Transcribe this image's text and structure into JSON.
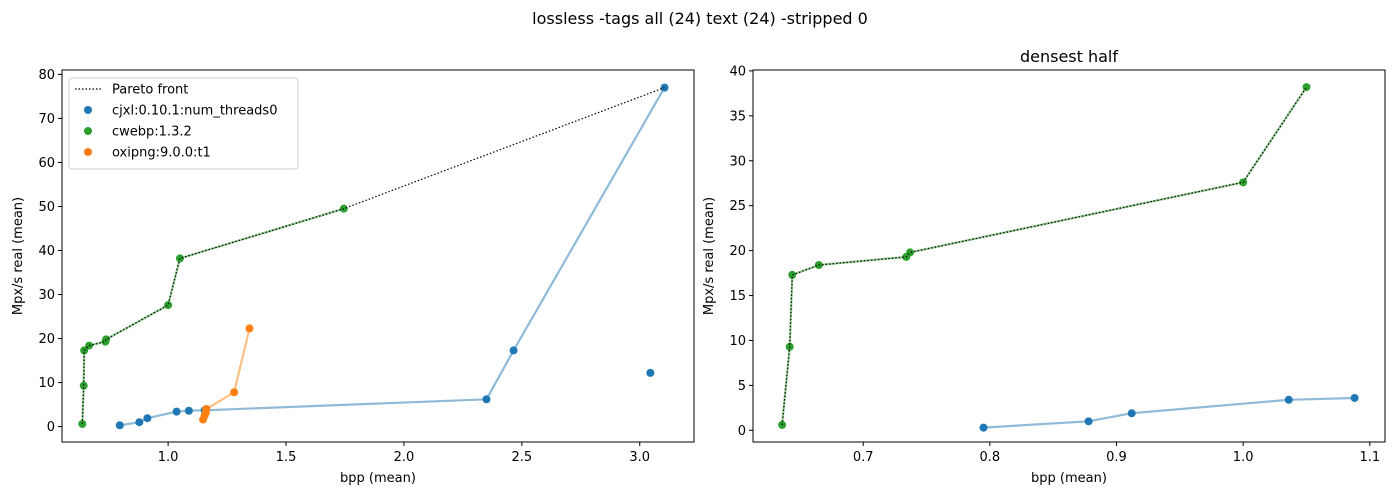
{
  "suptitle": "lossless -tags all (24) text (24) -stripped 0",
  "colors": {
    "cjxl": "#1f77b4",
    "cwebp": "#2ca02c",
    "oxipng": "#ff7f0e",
    "pareto": "#000000"
  },
  "chart_data": [
    {
      "type": "scatter",
      "title": "",
      "xlabel": "bpp (mean)",
      "ylabel": "Mpx/s real (mean)",
      "xlim": [
        0.55,
        3.23
      ],
      "ylim": [
        -3.5,
        81
      ],
      "xticks": [
        1.0,
        1.5,
        2.0,
        2.5,
        3.0
      ],
      "xtick_labels": [
        "1.0",
        "1.5",
        "2.0",
        "2.5",
        "3.0"
      ],
      "yticks": [
        0,
        10,
        20,
        30,
        40,
        50,
        60,
        70,
        80
      ],
      "ytick_labels": [
        "0",
        "10",
        "20",
        "30",
        "40",
        "50",
        "60",
        "70",
        "80"
      ],
      "grid": false,
      "legend": {
        "placement": "upper-left",
        "entries": [
          {
            "label": "Pareto front",
            "kind": "line",
            "series": "pareto"
          },
          {
            "label": "cjxl:0.10.1:num_threads0",
            "kind": "marker",
            "series": "cjxl"
          },
          {
            "label": "cwebp:1.3.2",
            "kind": "marker",
            "series": "cwebp"
          },
          {
            "label": "oxipng:9.0.0:t1",
            "kind": "marker",
            "series": "oxipng"
          }
        ]
      },
      "series": [
        {
          "key": "cjxl",
          "points": [
            [
              0.795,
              0.3
            ],
            [
              0.878,
              1.0
            ],
            [
              0.912,
              1.9
            ],
            [
              1.036,
              3.4
            ],
            [
              1.088,
              3.6
            ],
            [
              1.155,
              3.7
            ],
            [
              2.35,
              6.2
            ],
            [
              2.465,
              17.3
            ],
            [
              3.045,
              12.2
            ],
            [
              3.105,
              77.0
            ]
          ],
          "line": [
            [
              0.795,
              0.3
            ],
            [
              0.878,
              1.0
            ],
            [
              0.912,
              1.9
            ],
            [
              1.036,
              3.4
            ],
            [
              1.088,
              3.6
            ],
            [
              1.155,
              3.7
            ],
            [
              2.35,
              6.2
            ],
            [
              2.465,
              17.3
            ],
            [
              3.105,
              77.0
            ]
          ]
        },
        {
          "key": "cwebp",
          "points": [
            [
              0.636,
              0.6
            ],
            [
              0.642,
              9.3
            ],
            [
              0.644,
              17.3
            ],
            [
              0.665,
              18.4
            ],
            [
              0.734,
              19.3
            ],
            [
              0.737,
              19.8
            ],
            [
              1.0,
              27.6
            ],
            [
              1.05,
              38.2
            ],
            [
              1.745,
              49.5
            ]
          ],
          "line": [
            [
              0.636,
              0.6
            ],
            [
              0.642,
              9.3
            ],
            [
              0.644,
              17.3
            ],
            [
              0.665,
              18.4
            ],
            [
              0.734,
              19.3
            ],
            [
              0.737,
              19.8
            ],
            [
              1.0,
              27.6
            ],
            [
              1.05,
              38.2
            ],
            [
              1.745,
              49.5
            ]
          ]
        },
        {
          "key": "oxipng",
          "points": [
            [
              1.148,
              1.6
            ],
            [
              1.155,
              2.5
            ],
            [
              1.16,
              3.2
            ],
            [
              1.162,
              4.0
            ],
            [
              1.28,
              7.8
            ],
            [
              1.345,
              22.3
            ]
          ],
          "line": [
            [
              1.148,
              1.6
            ],
            [
              1.155,
              2.5
            ],
            [
              1.16,
              3.2
            ],
            [
              1.162,
              4.0
            ],
            [
              1.28,
              7.8
            ],
            [
              1.345,
              22.3
            ]
          ]
        },
        {
          "key": "pareto",
          "points": [],
          "line": [
            [
              0.636,
              0.6
            ],
            [
              0.642,
              9.3
            ],
            [
              0.644,
              17.3
            ],
            [
              0.665,
              18.4
            ],
            [
              0.734,
              19.3
            ],
            [
              0.737,
              19.8
            ],
            [
              1.0,
              27.6
            ],
            [
              1.05,
              38.2
            ],
            [
              1.745,
              49.5
            ],
            [
              3.105,
              77.0
            ]
          ]
        }
      ]
    },
    {
      "type": "scatter",
      "title": "densest half",
      "xlabel": "bpp (mean)",
      "ylabel": "Mpx/s real (mean)",
      "xlim": [
        0.613,
        1.112
      ],
      "ylim": [
        -1.3,
        40.1
      ],
      "xticks": [
        0.7,
        0.8,
        0.9,
        1.0,
        1.1
      ],
      "xtick_labels": [
        "0.7",
        "0.8",
        "0.9",
        "1.0",
        "1.1"
      ],
      "yticks": [
        0,
        5,
        10,
        15,
        20,
        25,
        30,
        35,
        40
      ],
      "ytick_labels": [
        "0",
        "5",
        "10",
        "15",
        "20",
        "25",
        "30",
        "35",
        "40"
      ],
      "grid": false,
      "series": [
        {
          "key": "cjxl",
          "points": [
            [
              0.795,
              0.3
            ],
            [
              0.878,
              1.0
            ],
            [
              0.912,
              1.9
            ],
            [
              1.036,
              3.4
            ],
            [
              1.088,
              3.6
            ]
          ],
          "line": [
            [
              0.795,
              0.3
            ],
            [
              0.878,
              1.0
            ],
            [
              0.912,
              1.9
            ],
            [
              1.036,
              3.4
            ],
            [
              1.088,
              3.6
            ]
          ]
        },
        {
          "key": "cwebp",
          "points": [
            [
              0.636,
              0.6
            ],
            [
              0.642,
              9.3
            ],
            [
              0.644,
              17.3
            ],
            [
              0.665,
              18.4
            ],
            [
              0.734,
              19.3
            ],
            [
              0.737,
              19.8
            ],
            [
              1.0,
              27.6
            ],
            [
              1.05,
              38.2
            ]
          ],
          "line": [
            [
              0.636,
              0.6
            ],
            [
              0.642,
              9.3
            ],
            [
              0.644,
              17.3
            ],
            [
              0.665,
              18.4
            ],
            [
              0.734,
              19.3
            ],
            [
              0.737,
              19.8
            ],
            [
              1.0,
              27.6
            ],
            [
              1.05,
              38.2
            ]
          ]
        },
        {
          "key": "pareto",
          "points": [],
          "line": [
            [
              0.636,
              0.6
            ],
            [
              0.642,
              9.3
            ],
            [
              0.644,
              17.3
            ],
            [
              0.665,
              18.4
            ],
            [
              0.734,
              19.3
            ],
            [
              0.737,
              19.8
            ],
            [
              1.0,
              27.6
            ],
            [
              1.05,
              38.2
            ]
          ]
        }
      ]
    }
  ]
}
